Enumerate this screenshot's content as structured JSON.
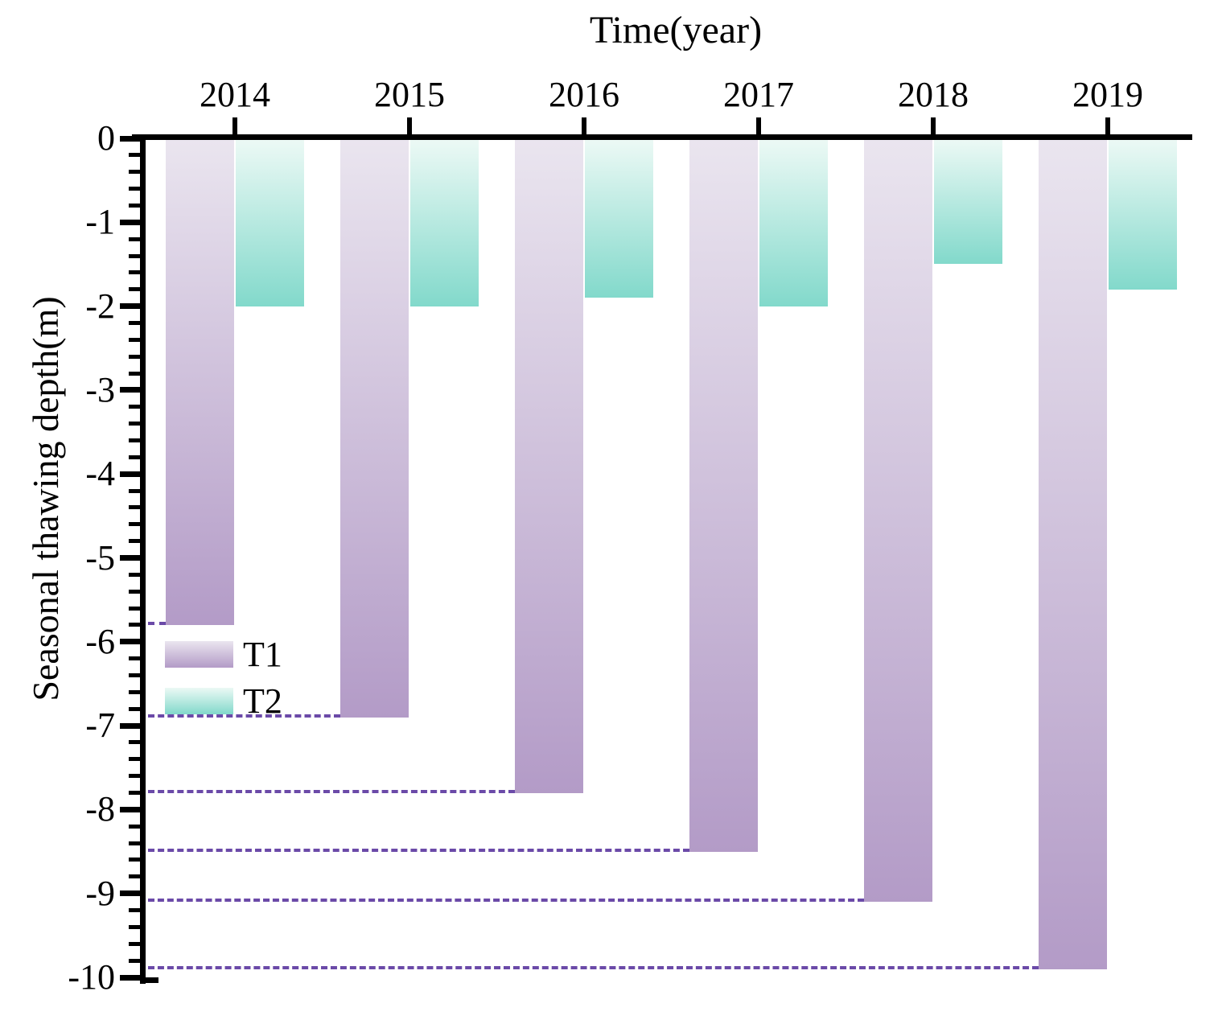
{
  "title": "Time(year)",
  "y_axis": {
    "label": "Seasonal thawing depth(m)",
    "tick_labels": [
      "0",
      "-1",
      "-2",
      "-3",
      "-4",
      "-5",
      "-6",
      "-7",
      "-8",
      "-9",
      "-10"
    ],
    "min": -10,
    "max": 0,
    "minor_tick_step": 0.2
  },
  "x_axis": {
    "label": "Time(year)",
    "position": "top"
  },
  "legend": {
    "items": [
      {
        "label": "T1"
      },
      {
        "label": "T2"
      }
    ]
  },
  "chart_data": {
    "type": "bar",
    "direction": "downward",
    "categories": [
      "2014",
      "2015",
      "2016",
      "2017",
      "2018",
      "2019"
    ],
    "series": [
      {
        "name": "T1",
        "values": [
          -5.8,
          -6.9,
          -7.8,
          -8.5,
          -9.1,
          -9.9
        ],
        "color_top": "#eae5ef",
        "color_bottom": "#b39bc7"
      },
      {
        "name": "T2",
        "values": [
          -2.0,
          -2.0,
          -1.9,
          -2.0,
          -1.5,
          -1.8
        ],
        "color_top": "#ecf9f5",
        "color_bottom": "#82d9cb"
      }
    ],
    "title": "Time(year)",
    "xlabel": "Time(year)",
    "ylabel": "Seasonal thawing depth(m)",
    "ylim": [
      -10,
      0
    ],
    "grid": false,
    "legend_position": "inside-left",
    "guide_lines": {
      "style": "dashed",
      "color": "#6b4aa8",
      "note": "horizontal dashed line from y-axis to each T1 bar at its bottom value",
      "values": [
        -5.8,
        -6.9,
        -7.8,
        -8.5,
        -9.1,
        -9.9
      ]
    },
    "colors": {
      "axis": "#000000",
      "text": "#000000",
      "background": "#ffffff"
    }
  }
}
